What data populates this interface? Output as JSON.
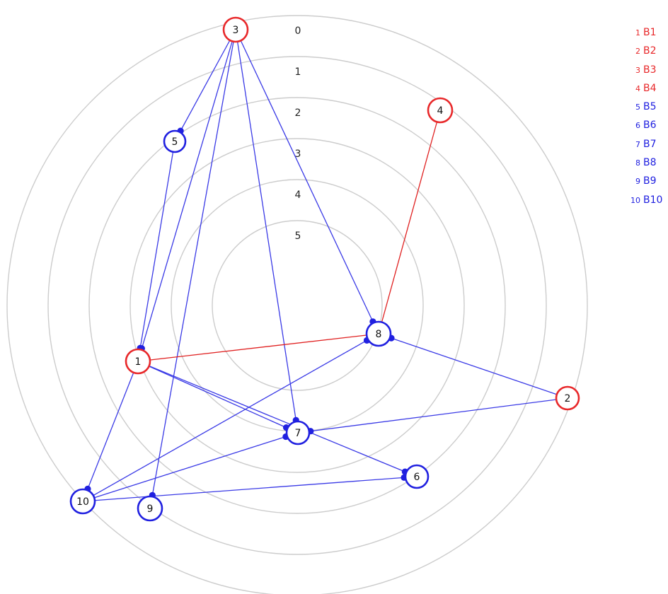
{
  "diagram": {
    "rings": [
      {
        "label": "0"
      },
      {
        "label": "1"
      },
      {
        "label": "2"
      },
      {
        "label": "3"
      },
      {
        "label": "4"
      },
      {
        "label": "5"
      }
    ],
    "colors": {
      "red_group": "#e8282a",
      "blue_group": "#2020e0",
      "edge_red": "#e02020",
      "edge_blue": "#3a3ae6",
      "ring": "#cccccc"
    },
    "nodes": [
      {
        "id": "1",
        "label": "1",
        "group": "red"
      },
      {
        "id": "2",
        "label": "2",
        "group": "red"
      },
      {
        "id": "3",
        "label": "3",
        "group": "red"
      },
      {
        "id": "4",
        "label": "4",
        "group": "red"
      },
      {
        "id": "5",
        "label": "5",
        "group": "blue"
      },
      {
        "id": "6",
        "label": "6",
        "group": "blue"
      },
      {
        "id": "7",
        "label": "7",
        "group": "blue"
      },
      {
        "id": "8",
        "label": "8",
        "group": "blue"
      },
      {
        "id": "9",
        "label": "9",
        "group": "blue"
      },
      {
        "id": "10",
        "label": "10",
        "group": "blue"
      }
    ],
    "edges": [
      {
        "from": "3",
        "to": "5",
        "color": "blue"
      },
      {
        "from": "3",
        "to": "1",
        "color": "blue"
      },
      {
        "from": "3",
        "to": "9",
        "color": "blue"
      },
      {
        "from": "3",
        "to": "7",
        "color": "blue"
      },
      {
        "from": "3",
        "to": "8",
        "color": "blue"
      },
      {
        "from": "5",
        "to": "1",
        "color": "blue"
      },
      {
        "from": "4",
        "to": "8",
        "color": "red"
      },
      {
        "from": "1",
        "to": "8",
        "color": "red"
      },
      {
        "from": "1",
        "to": "7",
        "color": "blue"
      },
      {
        "from": "1",
        "to": "6",
        "color": "blue"
      },
      {
        "from": "1",
        "to": "10",
        "color": "blue"
      },
      {
        "from": "2",
        "to": "8",
        "color": "blue"
      },
      {
        "from": "2",
        "to": "7",
        "color": "blue"
      },
      {
        "from": "10",
        "to": "8",
        "color": "blue"
      },
      {
        "from": "10",
        "to": "7",
        "color": "blue"
      },
      {
        "from": "10",
        "to": "6",
        "color": "blue"
      }
    ]
  },
  "legend": [
    {
      "num": "1",
      "label": "B1",
      "group": "red"
    },
    {
      "num": "2",
      "label": "B2",
      "group": "red"
    },
    {
      "num": "3",
      "label": "B3",
      "group": "red"
    },
    {
      "num": "4",
      "label": "B4",
      "group": "red"
    },
    {
      "num": "5",
      "label": "B5",
      "group": "blue"
    },
    {
      "num": "6",
      "label": "B6",
      "group": "blue"
    },
    {
      "num": "7",
      "label": "B7",
      "group": "blue"
    },
    {
      "num": "8",
      "label": "B8",
      "group": "blue"
    },
    {
      "num": "9",
      "label": "B9",
      "group": "blue"
    },
    {
      "num": "10",
      "label": "B10",
      "group": "blue"
    }
  ]
}
